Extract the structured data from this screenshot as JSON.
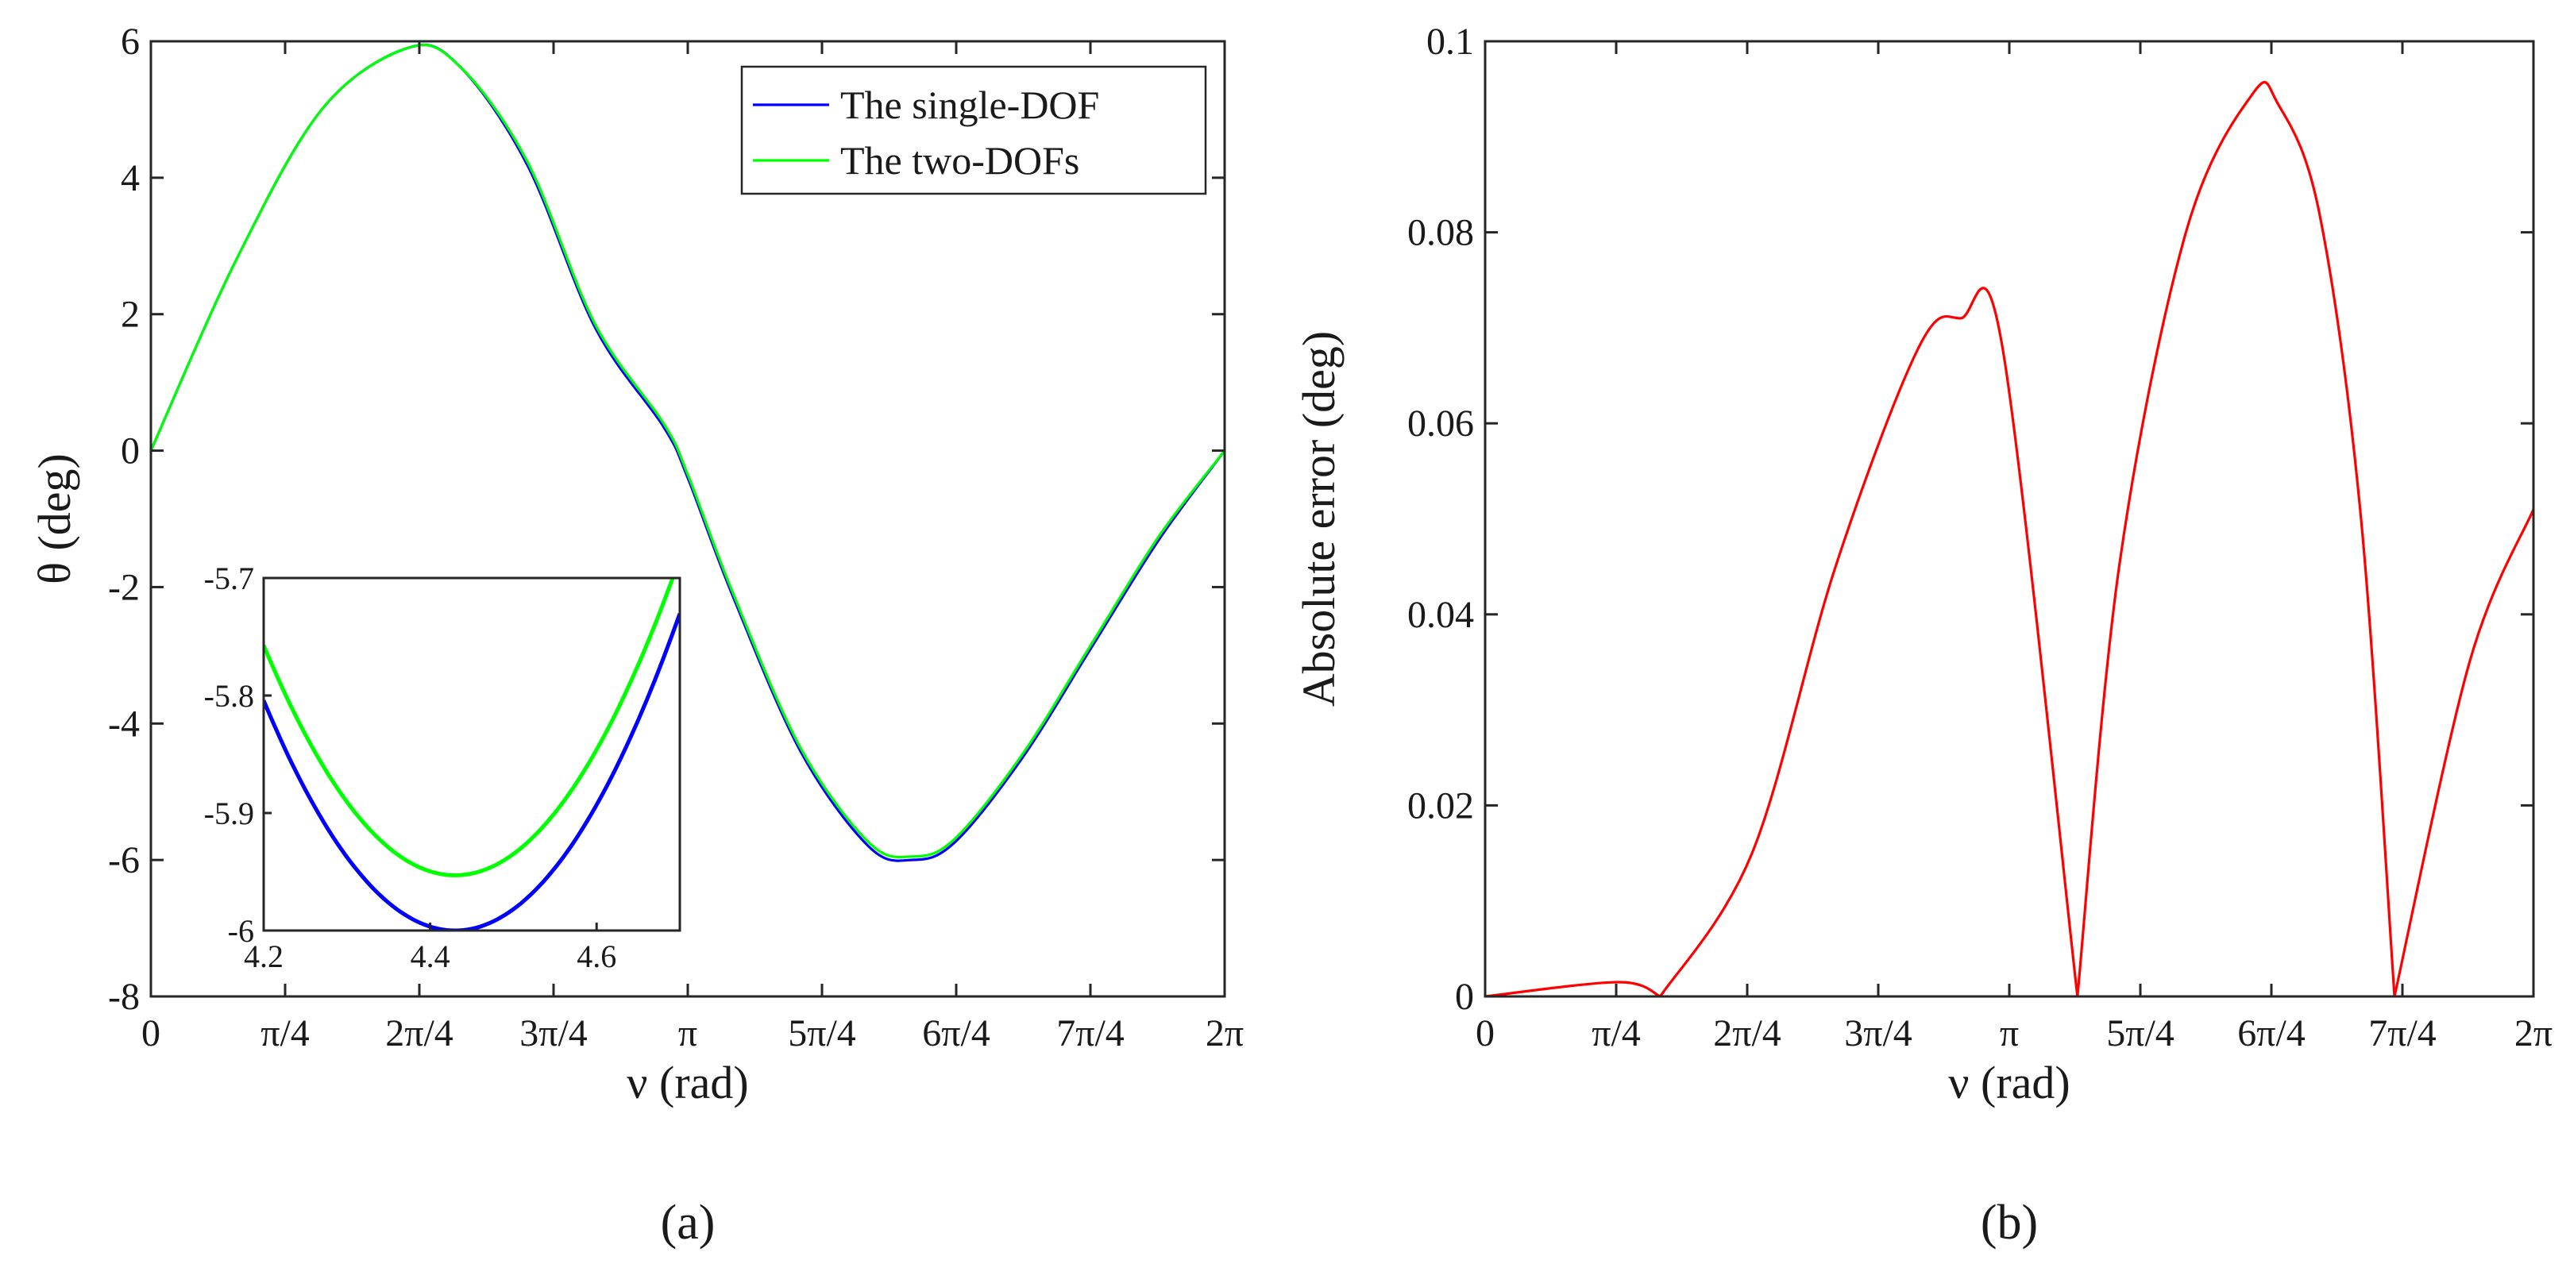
{
  "chart_data": [
    {
      "panel_label": "(a)",
      "type": "line",
      "xlabel": "ν (rad)",
      "ylabel": "θ (deg)",
      "xlim": [
        0,
        6.2832
      ],
      "ylim": [
        -8,
        6
      ],
      "x_ticks": [
        0,
        0.7854,
        1.5708,
        2.3562,
        3.1416,
        3.927,
        4.7124,
        5.4978,
        6.2832
      ],
      "x_tick_labels": [
        "0",
        "π/4",
        "2π/4",
        "3π/4",
        "π",
        "5π/4",
        "6π/4",
        "7π/4",
        "2π"
      ],
      "y_ticks": [
        -8,
        -6,
        -4,
        -2,
        0,
        2,
        4,
        6
      ],
      "y_tick_labels": [
        "-8",
        "-6",
        "-4",
        "-2",
        "0",
        "2",
        "4",
        "6"
      ],
      "legend_position": "top-right",
      "series": [
        {
          "name": "The single-DOF",
          "color": "#0000ff",
          "x": [
            0,
            0.5,
            1.0,
            1.5,
            1.8,
            2.2,
            2.6,
            3.0,
            3.1416,
            3.4,
            3.8,
            4.2,
            4.45,
            4.7,
            5.1,
            5.5,
            5.9,
            6.2832
          ],
          "y": [
            0,
            2.8,
            5.0,
            5.9,
            5.65,
            4.2,
            1.8,
            0.35,
            -0.4,
            -2.1,
            -4.4,
            -5.8,
            -6.0,
            -5.75,
            -4.5,
            -2.9,
            -1.3,
            0
          ]
        },
        {
          "name": "The two-DOFs",
          "color": "#00ff00",
          "x": [
            0,
            0.5,
            1.0,
            1.5,
            1.8,
            2.2,
            2.6,
            3.0,
            3.1416,
            3.4,
            3.8,
            4.2,
            4.45,
            4.7,
            5.1,
            5.5,
            5.9,
            6.2832
          ],
          "y": [
            0,
            2.8,
            5.0,
            5.9,
            5.65,
            4.25,
            1.85,
            0.4,
            -0.35,
            -2.05,
            -4.35,
            -5.74,
            -5.95,
            -5.7,
            -4.45,
            -2.85,
            -1.25,
            0
          ]
        }
      ],
      "inset": {
        "xlim": [
          4.2,
          4.7
        ],
        "ylim": [
          -6.0,
          -5.7
        ],
        "x_ticks": [
          4.2,
          4.4,
          4.6
        ],
        "x_tick_labels": [
          "4.2",
          "4.4",
          "4.6"
        ],
        "y_ticks": [
          -6.0,
          -5.9,
          -5.8,
          -5.7
        ],
        "y_tick_labels": [
          "-6",
          "-5.9",
          "-5.8",
          "-5.7"
        ]
      }
    },
    {
      "panel_label": "(b)",
      "type": "line",
      "xlabel": "ν (rad)",
      "ylabel": "Absolute error (deg)",
      "xlim": [
        0,
        6.2832
      ],
      "ylim": [
        0,
        0.1
      ],
      "x_ticks": [
        0,
        0.7854,
        1.5708,
        2.3562,
        3.1416,
        3.927,
        4.7124,
        5.4978,
        6.2832
      ],
      "x_tick_labels": [
        "0",
        "π/4",
        "2π/4",
        "3π/4",
        "π",
        "5π/4",
        "6π/4",
        "7π/4",
        "2π"
      ],
      "y_ticks": [
        0,
        0.02,
        0.04,
        0.06,
        0.08,
        0.1
      ],
      "y_tick_labels": [
        "0",
        "0.02",
        "0.04",
        "0.06",
        "0.08",
        "0.1"
      ],
      "series": [
        {
          "name": "",
          "color": "#ff0000",
          "x": [
            0,
            0.8,
            1.05,
            1.6,
            2.1,
            2.6,
            2.85,
            3.1,
            3.55,
            3.8,
            4.2,
            4.6,
            4.75,
            5.0,
            5.25,
            5.45,
            5.9,
            6.2832
          ],
          "y": [
            0,
            0.0015,
            0.0,
            0.015,
            0.045,
            0.068,
            0.071,
            0.068,
            0.0,
            0.045,
            0.08,
            0.0945,
            0.0935,
            0.082,
            0.05,
            0.0,
            0.035,
            0.051
          ]
        }
      ]
    }
  ]
}
